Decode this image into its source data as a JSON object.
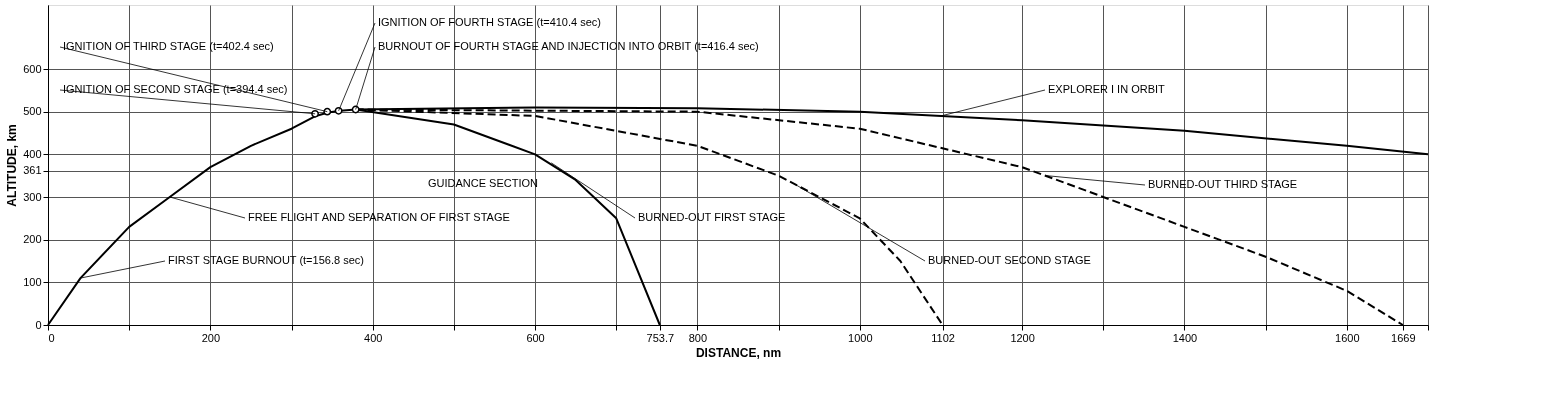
{
  "chart_data": {
    "type": "line",
    "xlabel": "DISTANCE, nm",
    "ylabel": "ALTITUDE, km",
    "xlim": [
      0,
      1700
    ],
    "ylim": [
      0,
      750
    ],
    "xticks": [
      0,
      {
        "value": 100,
        "label": null
      },
      200,
      {
        "value": 300,
        "label": null
      },
      400,
      {
        "value": 500,
        "label": null
      },
      600,
      {
        "value": 700,
        "label": null
      },
      753.7,
      800,
      {
        "value": 900,
        "label": null
      },
      1000,
      1102,
      1200,
      {
        "value": 1300,
        "label": null
      },
      1400,
      {
        "value": 1500,
        "label": null
      },
      1600,
      1669,
      {
        "value": 1700,
        "label": null
      }
    ],
    "yticks": [
      0,
      100,
      200,
      300,
      361,
      400,
      500,
      600
    ],
    "grid": true,
    "series": [
      {
        "color": "#000000",
        "line_style": "solid",
        "x": [
          0,
          40,
          100,
          150,
          200,
          250,
          300,
          330,
          345,
          360,
          379
        ],
        "values": [
          0,
          110,
          230,
          300,
          370,
          420,
          460,
          490,
          498,
          502,
          505
        ]
      },
      {
        "color": "#000000",
        "line_style": "solid",
        "x": [
          379,
          600,
          800,
          1000,
          1200,
          1400,
          1600,
          1700
        ],
        "values": [
          505,
          510,
          508,
          500,
          480,
          455,
          420,
          400
        ]
      },
      {
        "color": "#000000",
        "line_style": "solid",
        "x": [
          379,
          500,
          600,
          650,
          700,
          753.7
        ],
        "values": [
          505,
          470,
          400,
          340,
          250,
          0
        ]
      },
      {
        "type": "line",
        "color": "#000000",
        "line_style": "dashed",
        "x": [
          379,
          600,
          800,
          900,
          1000,
          1050,
          1102
        ],
        "values": [
          505,
          490,
          420,
          350,
          250,
          150,
          0
        ]
      },
      {
        "type": "line",
        "color": "#000000",
        "line_style": "dashed",
        "x": [
          379,
          800,
          1000,
          1200,
          1400,
          1500,
          1600,
          1669
        ],
        "values": [
          505,
          500,
          460,
          370,
          230,
          160,
          80,
          0
        ]
      },
      {
        "type": "scatter",
        "color": "#000000",
        "marker": "circle",
        "x": [
          329,
          344,
          358,
          379
        ],
        "values": [
          495,
          500,
          502,
          505
        ]
      }
    ],
    "annotations": [
      {
        "text": "FIRST STAGE BURNOUT (t=156.8 sec)",
        "x": 40,
        "y": 110
      },
      {
        "text": "FREE FLIGHT AND SEPARATION OF FIRST STAGE",
        "x": 150,
        "y": 300
      },
      {
        "text": "IGNITION OF SECOND STAGE (t=394.4 sec)",
        "x": 329,
        "y": 495
      },
      {
        "text": "IGNITION OF THIRD STAGE (t=402.4 sec)",
        "x": 344,
        "y": 500
      },
      {
        "text": "IGNITION OF FOURTH STAGE (t=410.4 sec)",
        "x": 358,
        "y": 502
      },
      {
        "text": "BURNOUT OF FOURTH STAGE AND INJECTION INTO ORBIT (t=416.4 sec)",
        "x": 379,
        "y": 505
      },
      "GUIDANCE SECTION",
      {
        "text": "BURNED-OUT FIRST STAGE",
        "x": 620,
        "y": 380
      },
      {
        "text": "BURNED-OUT SECOND STAGE",
        "x": 920,
        "y": 330
      },
      {
        "text": "BURNED-OUT THIRD STAGE",
        "x": 1230,
        "y": 350
      },
      {
        "text": "EXPLORER I IN ORBIT",
        "x": 1100,
        "y": 490
      }
    ]
  }
}
